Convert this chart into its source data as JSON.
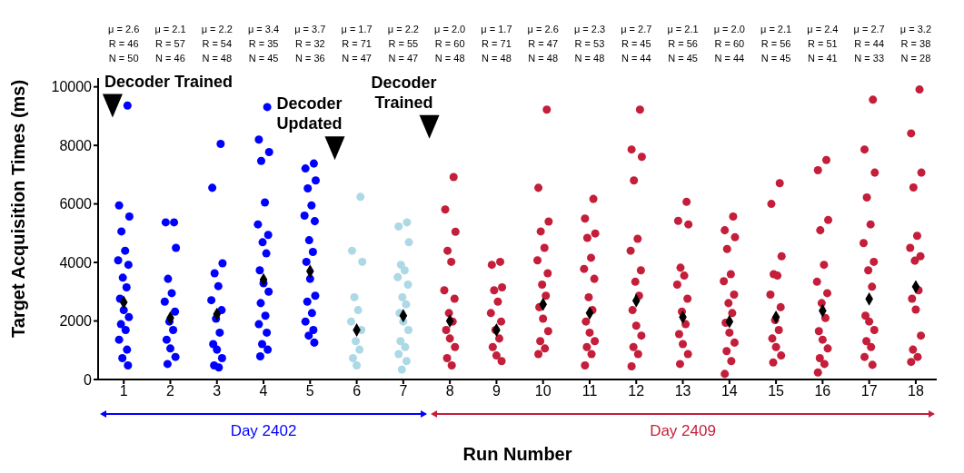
{
  "chart_data": {
    "type": "scatter",
    "xlabel": "Run Number",
    "ylabel": "Target Acquisition Times (ms)",
    "xlim": [
      0.45,
      18.45
    ],
    "xticks": [
      1,
      2,
      3,
      4,
      5,
      6,
      7,
      8,
      9,
      10,
      11,
      12,
      13,
      14,
      15,
      16,
      17,
      18
    ],
    "ylim": [
      0,
      10300
    ],
    "yticks": [
      0,
      2000,
      4000,
      6000,
      8000,
      10000
    ],
    "grid": false,
    "legend": false,
    "marker": "circle",
    "series": [
      {
        "color": "#0000ff",
        "x": [
          1.08,
          0.9,
          1.12,
          0.95,
          1.03,
          0.88,
          1.1,
          0.98,
          1.06,
          0.92,
          1,
          1.11,
          0.94,
          1.04,
          0.9,
          1.07,
          0.97,
          1.09,
          2.08,
          1.9,
          2.12,
          1.95,
          2.03,
          1.88,
          2.1,
          1.98,
          2.06,
          1.92,
          2,
          2.11,
          1.94,
          3.08,
          2.9,
          3.12,
          2.95,
          3.03,
          2.88,
          3.1,
          2.98,
          3.06,
          2.92,
          3,
          3.11,
          2.94,
          3.04,
          4.08,
          3.9,
          4.12,
          3.95,
          4.03,
          3.88,
          4.1,
          3.98,
          4.06,
          3.92,
          4,
          4.11,
          3.94,
          4.04,
          3.9,
          4.07,
          3.97,
          4.09,
          3.93,
          5.08,
          4.9,
          5.12,
          4.95,
          5.03,
          4.88,
          5.1,
          4.98,
          5.06,
          4.92,
          5,
          5.11,
          4.94,
          5.04,
          4.9,
          5.07,
          4.97,
          5.09
        ],
        "values": [
          9360,
          5950,
          5570,
          5060,
          4400,
          4070,
          3920,
          3480,
          3150,
          2760,
          2370,
          2130,
          1890,
          1690,
          1360,
          1020,
          730,
          480,
          5370,
          5370,
          4500,
          3440,
          2950,
          2660,
          2320,
          1980,
          1690,
          1360,
          1060,
          770,
          530,
          8050,
          6550,
          3970,
          3630,
          3190,
          2710,
          2370,
          2080,
          1600,
          1210,
          1020,
          730,
          480,
          410,
          9310,
          8200,
          7770,
          7470,
          6050,
          5300,
          4940,
          4690,
          4310,
          3730,
          3290,
          3000,
          2610,
          2180,
          1890,
          1600,
          1210,
          1020,
          790,
          7380,
          7210,
          6800,
          6530,
          5950,
          5600,
          5410,
          4760,
          4360,
          4020,
          3440,
          2860,
          2660,
          2270,
          1980,
          1690,
          1500,
          1260
        ]
      },
      {
        "color": "#add8e6",
        "x": [
          6.08,
          5.9,
          6.12,
          5.95,
          6.03,
          5.88,
          6.1,
          5.98,
          6.06,
          5.92,
          6,
          7.08,
          6.9,
          7.12,
          6.95,
          7.03,
          6.88,
          7.1,
          6.98,
          7.06,
          6.92,
          7,
          7.11,
          6.94,
          7.04,
          6.9,
          7.07,
          6.97
        ],
        "values": [
          6240,
          4400,
          4020,
          2810,
          2370,
          1980,
          1690,
          1310,
          1020,
          730,
          480,
          5370,
          5230,
          4690,
          3920,
          3730,
          3500,
          3240,
          2810,
          2570,
          2270,
          1980,
          1690,
          1310,
          1110,
          870,
          630,
          340
        ]
      },
      {
        "color": "#c41e3a",
        "x": [
          8.08,
          7.9,
          8.12,
          7.95,
          8.03,
          7.88,
          8.1,
          7.98,
          8.06,
          7.92,
          8,
          8.11,
          7.94,
          8.04,
          9.08,
          8.9,
          9.12,
          8.95,
          9.03,
          8.88,
          9.1,
          8.98,
          9.06,
          8.92,
          9,
          9.11,
          10.08,
          9.9,
          10.12,
          9.95,
          10.03,
          9.88,
          10.1,
          9.98,
          10.06,
          9.92,
          10,
          10.11,
          9.94,
          10.04,
          9.9,
          11.08,
          10.9,
          11.12,
          10.95,
          11.03,
          10.88,
          11.1,
          10.98,
          11.06,
          10.92,
          11,
          11.11,
          10.94,
          11.04,
          10.9,
          12.08,
          11.9,
          12.12,
          11.95,
          12.03,
          11.88,
          12.1,
          11.98,
          12.06,
          11.92,
          12,
          12.11,
          11.94,
          12.04,
          11.9,
          13.08,
          12.9,
          13.12,
          12.95,
          13.03,
          12.88,
          13.1,
          12.98,
          13.06,
          12.92,
          13,
          13.11,
          12.94,
          14.08,
          13.9,
          14.12,
          13.95,
          14.03,
          13.88,
          14.1,
          13.98,
          14.06,
          13.92,
          14,
          14.11,
          13.94,
          14.04,
          13.9,
          15.08,
          14.9,
          15.12,
          14.95,
          15.03,
          14.88,
          15.1,
          14.98,
          15.06,
          14.92,
          15,
          15.11,
          14.94,
          16.08,
          15.9,
          16.12,
          15.95,
          16.03,
          15.88,
          16.1,
          15.98,
          16.06,
          15.92,
          16,
          16.11,
          15.94,
          16.04,
          15.9,
          17.08,
          16.9,
          17.12,
          16.95,
          17.03,
          16.88,
          17.1,
          16.98,
          17.06,
          16.92,
          17,
          17.11,
          16.94,
          17.04,
          16.9,
          17.07,
          18.08,
          17.9,
          18.12,
          17.95,
          18.03,
          17.88,
          18.1,
          17.98,
          18.06,
          17.92,
          18,
          18.11,
          17.94,
          18.04,
          17.9
        ],
        "values": [
          6920,
          5810,
          5050,
          4400,
          4020,
          3050,
          2760,
          2270,
          1980,
          1690,
          1400,
          1110,
          730,
          480,
          4020,
          3920,
          3150,
          3050,
          2660,
          2270,
          1980,
          1690,
          1400,
          1110,
          820,
          630,
          9220,
          6550,
          5400,
          5060,
          4500,
          4070,
          3630,
          3240,
          2860,
          2470,
          2080,
          1650,
          1310,
          1060,
          870,
          6170,
          5500,
          4990,
          4840,
          4160,
          3780,
          3440,
          2810,
          2370,
          1980,
          1600,
          1310,
          1110,
          870,
          480,
          9220,
          7860,
          7610,
          6800,
          4810,
          4400,
          3730,
          3340,
          2860,
          2370,
          1840,
          1500,
          1110,
          870,
          450,
          6070,
          5420,
          5300,
          3820,
          3550,
          3240,
          2760,
          2320,
          1890,
          1550,
          1210,
          870,
          530,
          5570,
          5100,
          4860,
          4460,
          3600,
          3360,
          2900,
          2610,
          2270,
          1940,
          1600,
          1260,
          970,
          630,
          190,
          6710,
          6000,
          4210,
          3600,
          3550,
          2900,
          2470,
          2030,
          1690,
          1400,
          1110,
          820,
          580,
          7500,
          7150,
          5450,
          5100,
          3920,
          3340,
          2950,
          2610,
          2100,
          1650,
          1360,
          1060,
          730,
          530,
          240,
          9560,
          7860,
          7070,
          6220,
          5300,
          4660,
          4020,
          3730,
          3170,
          2180,
          1980,
          1690,
          1310,
          1110,
          770,
          500,
          9910,
          8410,
          7070,
          6560,
          4910,
          4500,
          4210,
          4060,
          3050,
          2760,
          2390,
          1500,
          1020,
          770,
          600
        ]
      },
      {
        "color": "#000000",
        "marker": "diamond",
        "x": [
          1,
          2,
          3,
          4,
          5,
          6,
          7,
          8,
          9,
          10,
          11,
          12,
          13,
          14,
          15,
          16,
          17,
          18
        ],
        "values": [
          2640,
          2100,
          2230,
          3410,
          3700,
          1690,
          2180,
          2000,
          1690,
          2570,
          2270,
          2690,
          2130,
          1980,
          2130,
          2350,
          2750,
          3170
        ]
      }
    ],
    "annotations": [
      "μ = 2.6\nR = 46\nN = 50",
      "μ = 2.1\nR = 57\nN = 46",
      "μ = 2.2\nR = 54\nN = 48",
      "μ = 3.4\nR = 35\nN = 45",
      "μ = 3.7\nR = 32\nN = 36",
      "μ = 1.7\nR = 71\nN = 47",
      "μ = 2.2\nR = 55\nN = 47",
      "μ = 2.0\nR = 60\nN = 48",
      "μ = 1.7\nR = 71\nN = 48",
      "μ = 2.6\nR = 47\nN = 48",
      "μ = 2.3\nR = 53\nN = 48",
      "μ = 2.7\nR = 45\nN = 44",
      "μ = 2.1\nR = 56\nN = 45",
      "μ = 2.0\nR = 60\nN = 44",
      "μ = 2.1\nR = 56\nN = 45",
      "μ = 2.4\nR = 51\nN = 41",
      "μ = 2.7\nR = 44\nN = 33",
      "μ = 3.2\nR = 38\nN = 28",
      "Decoder Trained",
      "Decoder\nUpdated",
      "Decoder\nTrained",
      "Day 2402",
      "Day 2409"
    ]
  }
}
